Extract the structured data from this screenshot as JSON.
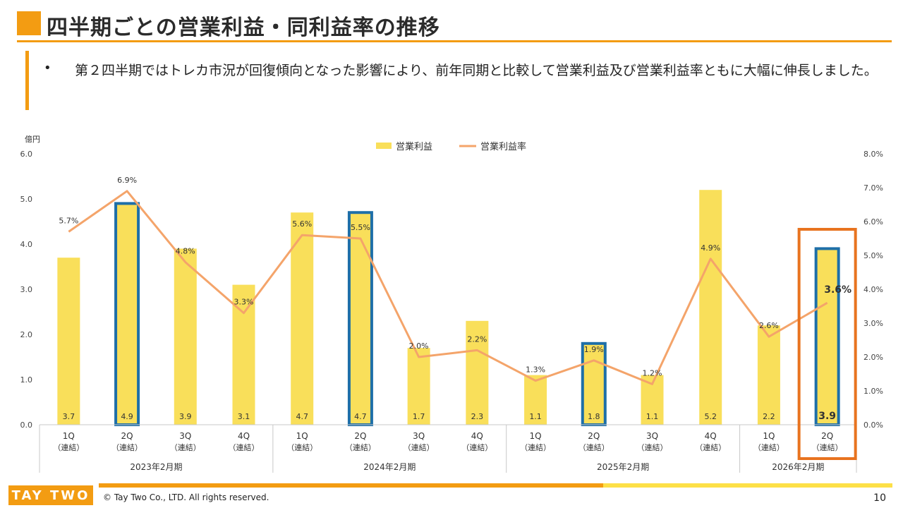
{
  "title": "四半期ごとの営業利益・同利益率の推移",
  "note": {
    "bullet": "•",
    "text": "第２四半期ではトレカ市況が回復傾向となった影響により、前年同期と比較して営業利益及び営業利益率ともに大幅に伸長しました。"
  },
  "chart_data": {
    "type": "bar",
    "y_unit_label": "億円",
    "legend": {
      "bar": "営業利益",
      "line": "営業利益率"
    },
    "categories": [
      "1Q",
      "2Q",
      "3Q",
      "4Q",
      "1Q",
      "2Q",
      "3Q",
      "4Q",
      "1Q",
      "2Q",
      "3Q",
      "4Q",
      "1Q",
      "2Q"
    ],
    "category_sub": "（連結）",
    "groups": [
      "2023年2月期",
      "2024年2月期",
      "2025年2月期",
      "2026年2月期"
    ],
    "bar_values": [
      3.7,
      4.9,
      3.9,
      3.1,
      4.7,
      4.7,
      1.7,
      2.3,
      1.1,
      1.8,
      1.1,
      5.2,
      2.2,
      3.9
    ],
    "bar_labels": [
      "3.7",
      "4.9",
      "3.9",
      "3.1",
      "4.7",
      "4.7",
      "1.7",
      "2.3",
      "1.1",
      "1.8",
      "1.1",
      "5.2",
      "2.2",
      "3.9"
    ],
    "line_values": [
      5.7,
      6.9,
      4.8,
      3.3,
      5.6,
      5.5,
      2.0,
      2.2,
      1.3,
      1.9,
      1.2,
      4.9,
      2.6,
      3.6
    ],
    "line_labels": [
      "5.7%",
      "6.9%",
      "4.8%",
      "3.3%",
      "5.6%",
      "5.5%",
      "2.0%",
      "2.2%",
      "1.3%",
      "1.9%",
      "1.2%",
      "4.9%",
      "2.6%",
      "3.6%"
    ],
    "highlighted_2q": [
      1,
      5,
      9,
      13
    ],
    "emphasized_index": 13,
    "ylim_left": [
      0,
      6
    ],
    "yticks_left": [
      "0.0",
      "1.0",
      "2.0",
      "3.0",
      "4.0",
      "5.0",
      "6.0"
    ],
    "ylim_right": [
      0,
      8
    ],
    "yticks_right": [
      "0.0%",
      "1.0%",
      "2.0%",
      "3.0%",
      "4.0%",
      "5.0%",
      "6.0%",
      "7.0%",
      "8.0%"
    ],
    "colors": {
      "bar": "#f9df5a",
      "line": "#f4a46a",
      "highlight": "#1e6fa8",
      "emphasis": "#e8731f",
      "axis": "#c8c8c8"
    }
  },
  "footer": {
    "logo": "TAY TWO",
    "copyright": "© Tay Two Co., LTD. All rights reserved.",
    "page": "10"
  }
}
